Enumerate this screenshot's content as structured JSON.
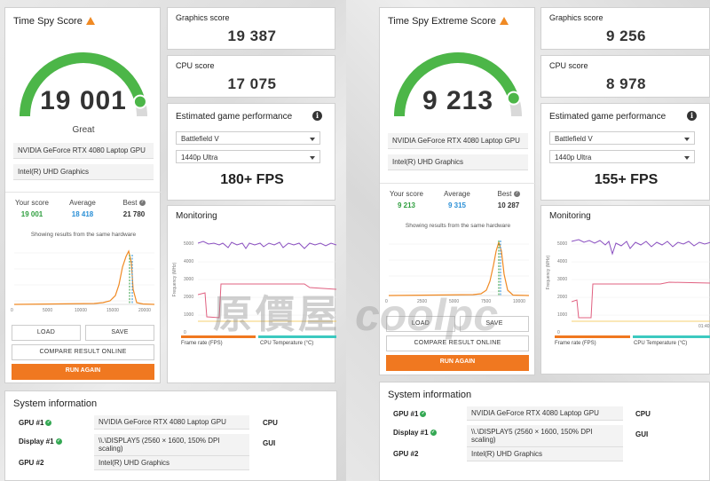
{
  "left": {
    "score_title": "Time Spy Score",
    "score": "19 001",
    "rating": "Great",
    "gauge_fraction": 0.92,
    "gpu": "NVIDIA GeForce RTX 4080 Laptop GPU",
    "igpu": "Intel(R) UHD Graphics",
    "your_score_label": "Your score",
    "your_score": "19 001",
    "average_label": "Average",
    "average": "18 418",
    "best_label": "Best",
    "best": "21 780",
    "same_hw_note": "Showing results from the same hardware",
    "hist_ticks": [
      "0",
      "5000",
      "10000",
      "15000",
      "20000"
    ],
    "load": "LOAD",
    "save": "SAVE",
    "compare": "COMPARE RESULT ONLINE",
    "run_again": "RUN AGAIN",
    "graphics_label": "Graphics score",
    "graphics_score": "19 387",
    "cpu_label": "CPU score",
    "cpu_score": "17 075",
    "est_title": "Estimated game performance",
    "game": "Battlefield V",
    "preset": "1440p Ultra",
    "fps": "180+ FPS",
    "monitoring_title": "Monitoring",
    "mon_ticks": [
      "5000",
      "4000",
      "3000",
      "2000",
      "1000",
      "0"
    ],
    "mon_ylabel": "Frequency (MHz)",
    "legend_fps": "Frame rate (FPS)",
    "legend_temp": "CPU Temperature (°C)",
    "sys_title": "System information",
    "gpu1_label": "GPU #1",
    "display1_label": "Display #1",
    "gpu2_label": "GPU #2",
    "display1": "\\\\.\\DISPLAY5 (2560 × 1600, 150% DPI scaling)",
    "cpu_col": "CPU",
    "gui_col": "GUI"
  },
  "right": {
    "score_title": "Time Spy Extreme Score",
    "score": "9 213",
    "gauge_fraction": 0.9,
    "gpu": "NVIDIA GeForce RTX 4080 Laptop GPU",
    "igpu": "Intel(R) UHD Graphics",
    "your_score_label": "Your score",
    "your_score": "9 213",
    "average_label": "Average",
    "average": "9 315",
    "best_label": "Best",
    "best": "10 287",
    "same_hw_note": "Showing results from the same hardware",
    "hist_ticks": [
      "0",
      "2500",
      "5000",
      "7500",
      "10000"
    ],
    "load": "LOAD",
    "save": "SAVE",
    "compare": "COMPARE RESULT ONLINE",
    "run_again": "RUN AGAIN",
    "graphics_label": "Graphics score",
    "graphics_score": "9 256",
    "cpu_label": "CPU score",
    "cpu_score": "8 978",
    "est_title": "Estimated game performance",
    "game": "Battlefield V",
    "preset": "1440p Ultra",
    "fps": "155+ FPS",
    "monitoring_title": "Monitoring",
    "mon_ticks": [
      "5000",
      "4000",
      "3000",
      "2000",
      "1000",
      "0"
    ],
    "mon_ylabel": "Frequency (MHz)",
    "mon_xtick": "01:40",
    "legend_fps": "Frame rate (FPS)",
    "legend_temp": "CPU Temperature (°C)",
    "sys_title": "System information",
    "gpu1_label": "GPU #1",
    "display1_label": "Display #1",
    "gpu2_label": "GPU #2",
    "display1": "\\\\.\\DISPLAY5 (2560 × 1600, 150% DPI scaling)",
    "cpu_col": "CPU",
    "gui_col": "GUI"
  },
  "watermark_cn": "原價屋",
  "watermark_en": "coolpc",
  "colors": {
    "gauge_green": "#4cb648",
    "your_score": "#2e9e3e",
    "average": "#2a8fd6",
    "accent_orange": "#f07820",
    "cpu_line": "#8a4fc0",
    "gpu_line": "#e06080",
    "temp_legend": "#3cc9c0"
  }
}
